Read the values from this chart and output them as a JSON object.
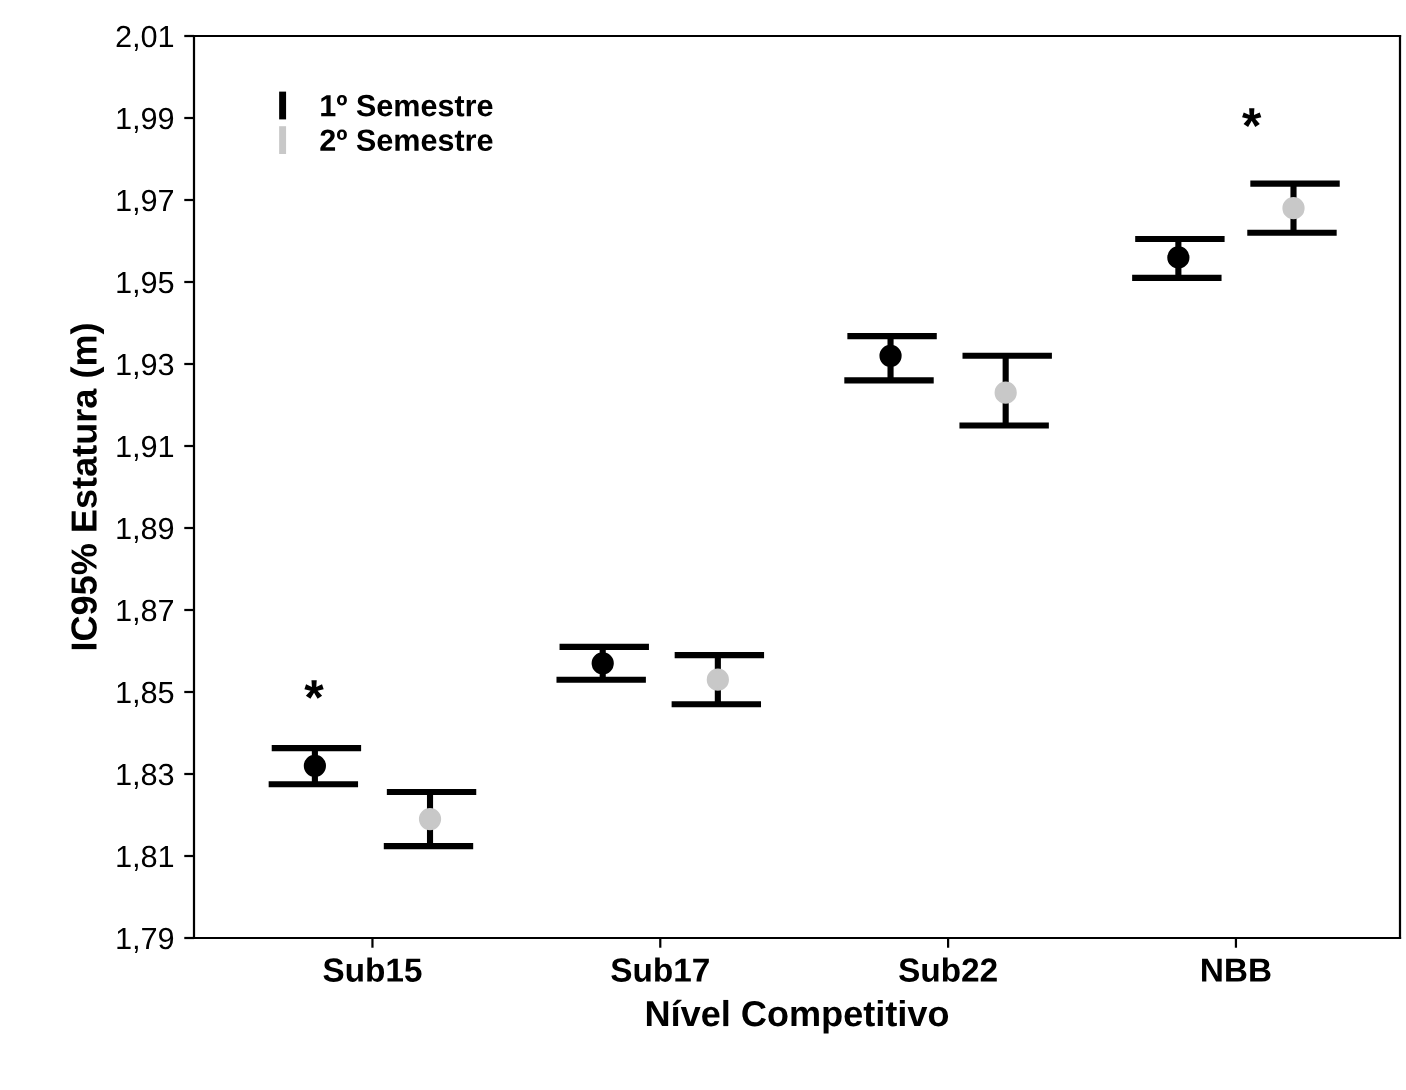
{
  "chart_data": {
    "type": "scatter",
    "xlabel": "Nível Competitivo",
    "ylabel": "IC95% Estatura (m)",
    "categories": [
      "Sub15",
      "Sub17",
      "Sub22",
      "NBB"
    ],
    "series": [
      {
        "name": "1º Semestre",
        "color": "#000000",
        "values": [
          1.832,
          1.857,
          1.932,
          1.956
        ],
        "errors": [
          [
            1.8275,
            1.8363
          ],
          [
            1.853,
            1.861
          ],
          [
            1.926,
            1.9368
          ],
          [
            1.951,
            1.9605
          ]
        ]
      },
      {
        "name": "2º Semestre",
        "color": "#c8c8c8",
        "values": [
          1.819,
          1.853,
          1.923,
          1.968
        ],
        "errors": [
          [
            1.8124,
            1.8256
          ],
          [
            1.847,
            1.859
          ],
          [
            1.915,
            1.932
          ],
          [
            1.962,
            1.974
          ]
        ]
      }
    ],
    "ylim": [
      1.79,
      2.01
    ],
    "yticks": [
      {
        "value": 1.79,
        "label": "1,79"
      },
      {
        "value": 1.81,
        "label": "1,81"
      },
      {
        "value": 1.83,
        "label": "1,83"
      },
      {
        "value": 1.85,
        "label": "1,85"
      },
      {
        "value": 1.87,
        "label": "1,87"
      },
      {
        "value": 1.89,
        "label": "1,89"
      },
      {
        "value": 1.91,
        "label": "1,91"
      },
      {
        "value": 1.93,
        "label": "1,93"
      },
      {
        "value": 1.95,
        "label": "1,95"
      },
      {
        "value": 1.97,
        "label": "1,97"
      },
      {
        "value": 1.99,
        "label": "1,99"
      },
      {
        "value": 2.01,
        "label": "2,01"
      }
    ],
    "annotations": [
      "*",
      "*"
    ],
    "legend": "top left",
    "grid": false,
    "marker": "circle"
  }
}
